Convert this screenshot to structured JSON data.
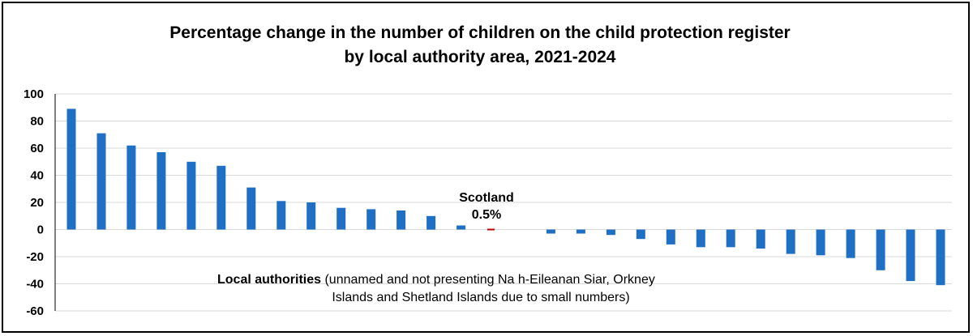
{
  "chart_data": {
    "type": "bar",
    "title_lines": [
      "Percentage change in the number of children on the child protection register",
      "by local authority area, 2021-2024"
    ],
    "xlabel": "",
    "ylabel": "",
    "ylim": [
      -60,
      100
    ],
    "yticks": [
      100,
      80,
      60,
      40,
      20,
      0,
      -20,
      -40,
      -60
    ],
    "grid": true,
    "categories": [
      "",
      "",
      "",
      "",
      "",
      "",
      "",
      "",
      "",
      "",
      "",
      "",
      "",
      "",
      "",
      "",
      "",
      "",
      "",
      "",
      "",
      "",
      "",
      "",
      "",
      "",
      "",
      "",
      "",
      ""
    ],
    "values": [
      89,
      71,
      62,
      57,
      50,
      47,
      31,
      21,
      20,
      16,
      15,
      14,
      10,
      3,
      0.5,
      0,
      -3,
      -3,
      -4,
      -7,
      -11,
      -13,
      -13,
      -14,
      -18,
      -19,
      -21,
      -30,
      -38,
      -41
    ],
    "colors": {
      "local_authority": "#1f6fc4",
      "scotland": "#c00000",
      "grid": "#d9d9d9"
    },
    "highlight": {
      "index": 14,
      "label": "Scotland",
      "value_label": "0.5%"
    },
    "note": {
      "bold": "Local authorities",
      "line1_rest": " (unnamed and not presenting Na h-Eileanan Siar, Orkney",
      "line2": "Islands and Shetland Islands due to small numbers)"
    }
  }
}
